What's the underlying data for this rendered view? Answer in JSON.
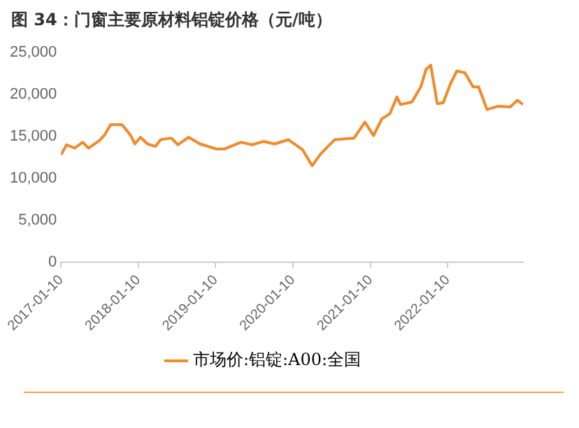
{
  "chart_data": {
    "type": "line",
    "title": "图 34：门窗主要原材料铝锭价格（元/吨）",
    "x": [
      "2017-01-10",
      "2017-02-05",
      "2017-03-15",
      "2017-04-22",
      "2017-05-20",
      "2017-07-10",
      "2017-08-05",
      "2017-09-01",
      "2017-10-25",
      "2017-12-05",
      "2017-12-25",
      "2018-01-20",
      "2018-02-22",
      "2018-04-01",
      "2018-04-25",
      "2018-06-15",
      "2018-07-15",
      "2018-09-05",
      "2018-10-28",
      "2019-01-12",
      "2019-02-22",
      "2019-05-10",
      "2019-07-01",
      "2019-08-25",
      "2019-10-15",
      "2019-12-20",
      "2020-02-25",
      "2020-04-10",
      "2020-05-20",
      "2020-07-25",
      "2020-10-25",
      "2020-12-15",
      "2021-01-25",
      "2021-03-05",
      "2021-04-12",
      "2021-05-15",
      "2021-06-01",
      "2021-07-25",
      "2021-09-05",
      "2021-09-30",
      "2021-10-22",
      "2021-11-22",
      "2021-12-20",
      "2022-01-22",
      "2022-02-22",
      "2022-04-01",
      "2022-05-10",
      "2022-06-05",
      "2022-07-15",
      "2022-09-05",
      "2022-11-01",
      "2022-12-05",
      "2023-01-01"
    ],
    "series": [
      {
        "name": "市场价:铝锭:A00:全国",
        "color": "#f28a2a",
        "values": [
          12800,
          14000,
          13600,
          14300,
          13600,
          14500,
          15200,
          16400,
          16400,
          15100,
          14100,
          14900,
          14100,
          13800,
          14600,
          14800,
          14000,
          14900,
          14100,
          13500,
          13500,
          14300,
          14000,
          14400,
          14100,
          14600,
          13400,
          11500,
          12900,
          14600,
          14800,
          16700,
          15100,
          17100,
          17700,
          19700,
          18800,
          19100,
          20900,
          23000,
          23500,
          18900,
          19000,
          21200,
          22800,
          22600,
          20900,
          20900,
          18200,
          18600,
          18500,
          19300,
          18800
        ]
      }
    ],
    "xlim": [
      "2017-01-10",
      "2023-01-01"
    ],
    "xticks": [
      "2017-01-10",
      "2018-01-10",
      "2019-01-10",
      "2020-01-10",
      "2021-01-10",
      "2022-01-10"
    ],
    "ylim": [
      0,
      25000
    ],
    "yticks": [
      0,
      {
        "value": 5000,
        "label": "5,000"
      },
      {
        "value": 10000,
        "label": "10,000"
      },
      {
        "value": 15000,
        "label": "15,000"
      },
      {
        "value": 20000,
        "label": "20,000"
      },
      {
        "value": 25000,
        "label": "25,000"
      }
    ],
    "grid": false,
    "legend": "bottom",
    "marker": "none",
    "line_style": "solid"
  }
}
